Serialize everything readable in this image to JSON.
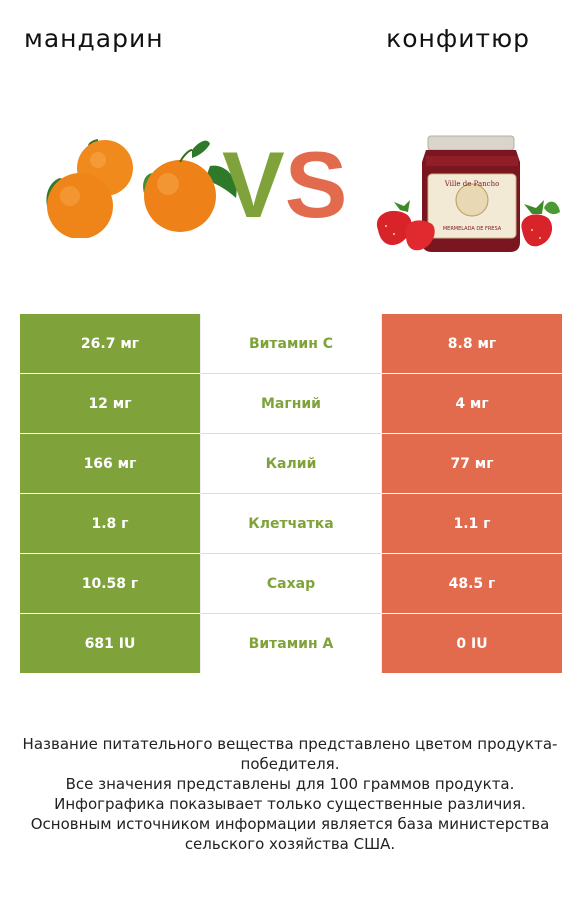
{
  "header": {
    "left_title": "мандарин",
    "right_title": "конфитюр",
    "vs_v": "V",
    "vs_s": "S"
  },
  "colors": {
    "left_accent": "#7fa33a",
    "right_accent": "#e26a4d"
  },
  "images": {
    "left": "mandarin-image",
    "right": "jam-jar-image",
    "jar_label_text": "Ville de Pancho",
    "jar_sub_text": "MERMELADA DE FRESA"
  },
  "rows": [
    {
      "left": "26.7 мг",
      "name": "Витамин C",
      "right": "8.8 мг"
    },
    {
      "left": "12 мг",
      "name": "Магний",
      "right": "4 мг"
    },
    {
      "left": "166 мг",
      "name": "Калий",
      "right": "77 мг"
    },
    {
      "left": "1.8 г",
      "name": "Клетчатка",
      "right": "1.1 г"
    },
    {
      "left": "10.58 г",
      "name": "Сахар",
      "right": "48.5 г"
    },
    {
      "left": "681 IU",
      "name": "Витамин A",
      "right": "0 IU"
    }
  ],
  "notes": [
    "Название питательного вещества представлено цветом продукта-победителя.",
    "Все значения представлены для 100 граммов продукта.",
    "Инфографика показывает только существенные различия.",
    "Основным источником информации является база министерства сельского хозяйства США."
  ]
}
